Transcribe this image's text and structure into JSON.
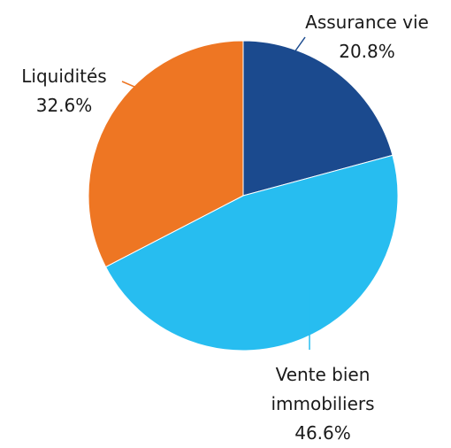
{
  "chart_data": {
    "type": "pie",
    "categories": [
      "Assurance vie",
      "Vente bien immobiliers",
      "Liquidités"
    ],
    "values": [
      20.8,
      46.6,
      32.6
    ],
    "value_labels": [
      "20.8%",
      "46.6%",
      "32.6%"
    ],
    "colors": [
      "#1b4a8e",
      "#27bdf0",
      "#ee7623"
    ]
  }
}
